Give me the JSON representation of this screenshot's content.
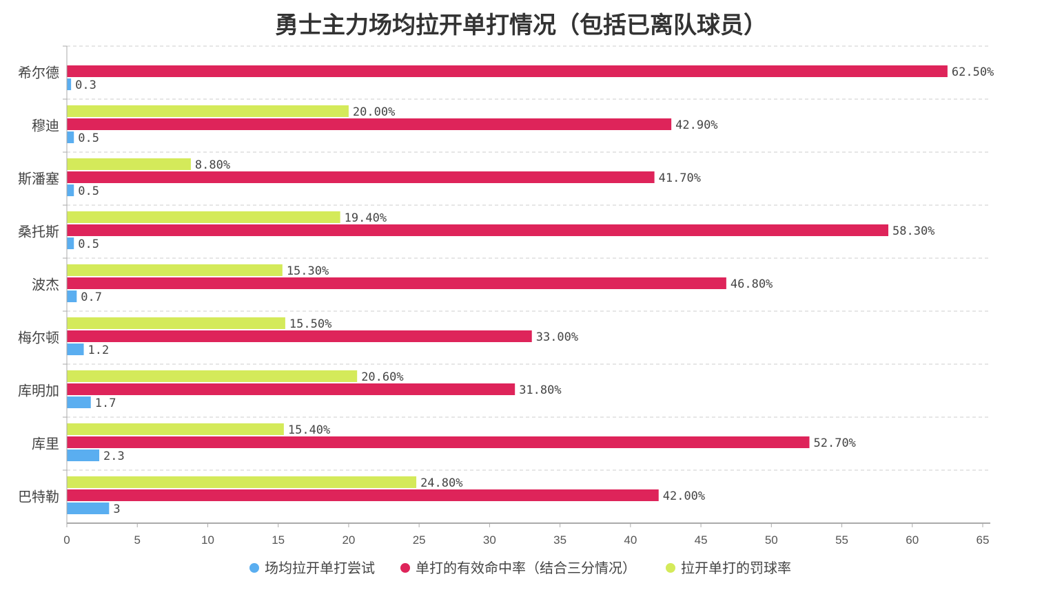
{
  "chart_data": {
    "type": "bar",
    "orientation": "horizontal",
    "title": "勇士主力场均拉开单打情况（包括已离队球员）",
    "categories": [
      "希尔德",
      "穆迪",
      "斯潘塞",
      "桑托斯",
      "波杰",
      "梅尔顿",
      "库明加",
      "库里",
      "巴特勒"
    ],
    "xlim": [
      0,
      65
    ],
    "xticks": [
      0,
      5,
      10,
      15,
      20,
      25,
      30,
      35,
      40,
      45,
      50,
      55,
      60,
      65
    ],
    "grid": true,
    "legend_position": "bottom",
    "series": [
      {
        "name": "拉开单打的罚球率",
        "color": "#d4ea5a",
        "values": [
          null,
          20.0,
          8.8,
          19.4,
          15.3,
          15.5,
          20.6,
          15.4,
          24.8
        ],
        "labels": [
          null,
          "20.00%",
          "8.80%",
          "19.40%",
          "15.30%",
          "15.50%",
          "20.60%",
          "15.40%",
          "24.80%"
        ]
      },
      {
        "name": "单打的有效命中率（结合三分情况）",
        "color": "#de245a",
        "values": [
          62.5,
          42.9,
          41.7,
          58.3,
          46.8,
          33.0,
          31.8,
          52.7,
          42.0
        ],
        "labels": [
          "62.50%",
          "42.90%",
          "41.70%",
          "58.30%",
          "46.80%",
          "33.00%",
          "31.80%",
          "52.70%",
          "42.00%"
        ]
      },
      {
        "name": "场均拉开单打尝试",
        "color": "#5aaef0",
        "values": [
          0.3,
          0.5,
          0.5,
          0.5,
          0.7,
          1.2,
          1.7,
          2.3,
          3
        ],
        "labels": [
          "0.3",
          "0.5",
          "0.5",
          "0.5",
          "0.7",
          "1.2",
          "1.7",
          "2.3",
          "3"
        ]
      }
    ],
    "legend_order": [
      2,
      1,
      0
    ]
  }
}
